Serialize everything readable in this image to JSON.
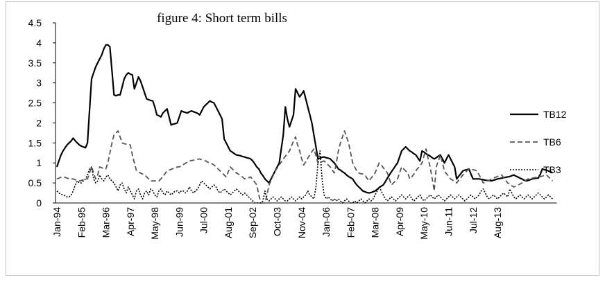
{
  "chart_data": {
    "type": "line",
    "title": "figure 4: Short term bills",
    "categories": [
      "Jan-94",
      null,
      null,
      null,
      null,
      null,
      null,
      null,
      null,
      null,
      null,
      null,
      "Feb-95",
      null,
      null,
      null,
      null,
      null,
      null,
      null,
      null,
      null,
      null,
      null,
      "Mar-96",
      null,
      null,
      null,
      null,
      null,
      null,
      null,
      null,
      null,
      null,
      null,
      "Apr-97",
      null,
      null,
      null,
      null,
      null,
      null,
      null,
      null,
      null,
      null,
      null,
      "May-98",
      null,
      null,
      null,
      null,
      null,
      null,
      null,
      null,
      null,
      null,
      null,
      "Jun-99",
      null,
      null,
      null,
      null,
      null,
      null,
      null,
      null,
      null,
      null,
      null,
      "Jul-00",
      null,
      null,
      null,
      null,
      null,
      null,
      null,
      null,
      null,
      null,
      null,
      "Aug-01",
      null,
      null,
      null,
      null,
      null,
      null,
      null,
      null,
      null,
      null,
      null,
      "Sep-02",
      null,
      null,
      null,
      null,
      null,
      null,
      null,
      null,
      null,
      null,
      null,
      "Oct-03",
      null,
      null,
      null,
      null,
      null,
      null,
      null,
      null,
      null,
      null,
      null,
      "Nov-04",
      null,
      null,
      null,
      null,
      null,
      null,
      null,
      null,
      null,
      null,
      null,
      "Jan-06",
      null,
      null,
      null,
      null,
      null,
      null,
      null,
      null,
      null,
      null,
      null,
      "Feb-07",
      null,
      null,
      null,
      null,
      null,
      null,
      null,
      null,
      null,
      null,
      null,
      "Mar-08",
      null,
      null,
      null,
      null,
      null,
      null,
      null,
      null,
      null,
      null,
      null,
      "Apr-09",
      null,
      null,
      null,
      null,
      null,
      null,
      null,
      null,
      null,
      null,
      null,
      "May-10",
      null,
      null,
      null,
      null,
      null,
      null,
      null,
      null,
      null,
      null,
      null,
      "Jun-11",
      null,
      null,
      null,
      null,
      null,
      null,
      null,
      null,
      null,
      null,
      null,
      "Jul-12",
      null,
      null,
      null,
      null,
      null,
      null,
      null,
      null,
      null,
      null,
      null,
      "Aug-13",
      null,
      null,
      null,
      null,
      null,
      null,
      null,
      null,
      null,
      null,
      null,
      null,
      null,
      null,
      null,
      null,
      null,
      null,
      null,
      null,
      null,
      null,
      null,
      null,
      null,
      null,
      null
    ],
    "series": [
      {
        "name": "TB12",
        "color": "#000000",
        "dash": "solid",
        "values": [
          0.9,
          1.05,
          1.2,
          1.3,
          1.38,
          1.45,
          1.5,
          1.55,
          1.62,
          1.55,
          1.5,
          1.45,
          1.42,
          1.4,
          1.38,
          1.5,
          2.3,
          3.1,
          3.25,
          3.4,
          3.5,
          3.6,
          3.7,
          3.85,
          3.95,
          3.95,
          3.9,
          3.3,
          2.7,
          2.68,
          2.7,
          2.7,
          2.9,
          3.1,
          3.2,
          3.25,
          3.22,
          3.2,
          2.85,
          3.0,
          3.15,
          3.05,
          2.9,
          2.75,
          2.6,
          2.58,
          2.56,
          2.55,
          2.4,
          2.2,
          2.18,
          2.15,
          2.25,
          2.3,
          2.35,
          2.15,
          1.95,
          1.97,
          1.98,
          2.0,
          2.15,
          2.3,
          2.28,
          2.26,
          2.25,
          2.28,
          2.3,
          2.28,
          2.26,
          2.24,
          2.2,
          2.3,
          2.4,
          2.45,
          2.5,
          2.55,
          2.52,
          2.5,
          2.4,
          2.3,
          2.2,
          2.1,
          1.6,
          1.5,
          1.4,
          1.3,
          1.27,
          1.23,
          1.2,
          1.19,
          1.18,
          1.16,
          1.15,
          1.13,
          1.12,
          1.1,
          1.05,
          0.98,
          0.9,
          0.85,
          0.75,
          0.68,
          0.6,
          0.55,
          0.5,
          0.6,
          0.7,
          0.8,
          0.9,
          1.0,
          1.35,
          1.7,
          2.4,
          2.1,
          1.9,
          2.05,
          2.2,
          2.85,
          2.75,
          2.65,
          2.72,
          2.8,
          2.6,
          2.4,
          2.2,
          2.0,
          1.7,
          1.4,
          1.1,
          1.12,
          1.14,
          1.15,
          1.13,
          1.12,
          1.1,
          1.05,
          1.0,
          0.93,
          0.85,
          0.82,
          0.78,
          0.75,
          0.7,
          0.66,
          0.63,
          0.6,
          0.52,
          0.45,
          0.4,
          0.35,
          0.3,
          0.28,
          0.26,
          0.25,
          0.26,
          0.28,
          0.3,
          0.34,
          0.38,
          0.42,
          0.45,
          0.53,
          0.62,
          0.7,
          0.78,
          0.85,
          0.93,
          1.0,
          1.15,
          1.3,
          1.35,
          1.4,
          1.35,
          1.3,
          1.27,
          1.23,
          1.2,
          1.12,
          1.05,
          1.3,
          1.27,
          1.23,
          1.2,
          1.17,
          1.13,
          1.1,
          1.13,
          1.17,
          1.2,
          1.1,
          1.0,
          1.1,
          1.2,
          1.1,
          1.0,
          0.9,
          0.6,
          0.67,
          0.73,
          0.8,
          0.82,
          0.83,
          0.85,
          0.72,
          0.6,
          0.6,
          0.6,
          0.6,
          0.59,
          0.58,
          0.57,
          0.56,
          0.56,
          0.55,
          0.57,
          0.58,
          0.6,
          0.61,
          0.62,
          0.63,
          0.64,
          0.65,
          0.66,
          0.68,
          0.7,
          0.67,
          0.65,
          0.62,
          0.6,
          0.57,
          0.55,
          0.56,
          0.58,
          0.6,
          0.61,
          0.62,
          0.62,
          0.72,
          0.85,
          0.83,
          0.82,
          0.8,
          0.78,
          0.75
        ]
      },
      {
        "name": "TB6",
        "color": "#555555",
        "dash": "dashed",
        "values": [
          0.6,
          0.62,
          0.64,
          0.65,
          0.64,
          0.62,
          0.61,
          0.6,
          0.6,
          0.58,
          0.56,
          0.55,
          0.56,
          0.58,
          0.6,
          0.6,
          0.75,
          0.9,
          0.75,
          0.6,
          0.7,
          0.9,
          0.88,
          0.86,
          0.85,
          1.0,
          1.25,
          1.5,
          1.7,
          1.75,
          1.8,
          1.65,
          1.5,
          1.48,
          1.47,
          1.46,
          1.45,
          1.2,
          1.0,
          0.8,
          0.77,
          0.75,
          0.72,
          0.7,
          0.65,
          0.6,
          0.55,
          0.55,
          0.55,
          0.55,
          0.55,
          0.6,
          0.67,
          0.73,
          0.8,
          0.82,
          0.84,
          0.86,
          0.88,
          0.9,
          0.9,
          0.93,
          0.96,
          0.99,
          1.02,
          1.05,
          1.06,
          1.07,
          1.08,
          1.09,
          1.1,
          1.08,
          1.06,
          1.05,
          1.02,
          1.0,
          0.98,
          0.95,
          0.9,
          0.85,
          0.8,
          0.75,
          0.7,
          0.65,
          0.78,
          0.9,
          0.85,
          0.8,
          0.75,
          0.72,
          0.68,
          0.65,
          0.6,
          0.62,
          0.63,
          0.65,
          0.58,
          0.52,
          0.45,
          0.2,
          0.0,
          0.0,
          0.0,
          0.2,
          0.45,
          0.57,
          0.68,
          0.8,
          0.87,
          0.95,
          1.02,
          1.1,
          1.17,
          1.23,
          1.3,
          1.42,
          1.55,
          1.65,
          1.45,
          1.3,
          1.1,
          0.95,
          1.03,
          1.12,
          1.2,
          1.28,
          1.35,
          1.18,
          1.0,
          1.02,
          1.03,
          1.05,
          1.0,
          0.95,
          0.9,
          0.82,
          0.75,
          1.0,
          1.3,
          1.5,
          1.65,
          1.8,
          1.65,
          1.5,
          1.25,
          1.0,
          0.9,
          0.8,
          0.75,
          0.73,
          0.72,
          0.7,
          0.62,
          0.55,
          0.62,
          0.68,
          0.75,
          0.88,
          1.0,
          0.95,
          0.88,
          0.82,
          0.75,
          0.6,
          0.45,
          0.5,
          0.55,
          0.6,
          0.75,
          0.9,
          0.85,
          0.8,
          0.75,
          0.6,
          0.65,
          0.72,
          0.8,
          0.87,
          0.93,
          1.0,
          1.18,
          1.35,
          1.1,
          0.9,
          0.6,
          0.3,
          0.9,
          1.05,
          1.2,
          1.0,
          0.8,
          0.73,
          0.67,
          0.6,
          0.57,
          0.53,
          0.5,
          0.57,
          0.63,
          0.7,
          0.75,
          0.8,
          0.85,
          0.84,
          0.83,
          0.82,
          0.8,
          0.7,
          0.6,
          0.5,
          0.52,
          0.55,
          0.57,
          0.6,
          0.62,
          0.64,
          0.66,
          0.68,
          0.7,
          0.63,
          0.57,
          0.5,
          0.47,
          0.43,
          0.4,
          0.42,
          0.45,
          0.47,
          0.5,
          0.53,
          0.57,
          0.6,
          0.61,
          0.62,
          0.63,
          0.64,
          0.65,
          0.66,
          0.67,
          0.69,
          0.7,
          0.65,
          0.6,
          0.55
        ]
      },
      {
        "name": "TB3",
        "color": "#000000",
        "dash": "dotted",
        "values": [
          0.3,
          0.25,
          0.22,
          0.2,
          0.18,
          0.15,
          0.15,
          0.2,
          0.3,
          0.45,
          0.55,
          0.5,
          0.5,
          0.55,
          0.6,
          0.7,
          0.85,
          0.9,
          0.6,
          0.5,
          0.55,
          0.7,
          0.6,
          0.55,
          0.65,
          0.7,
          0.6,
          0.55,
          0.5,
          0.4,
          0.3,
          0.45,
          0.5,
          0.35,
          0.25,
          0.4,
          0.3,
          0.2,
          0.1,
          0.3,
          0.35,
          0.2,
          0.1,
          0.25,
          0.3,
          0.2,
          0.35,
          0.3,
          0.2,
          0.15,
          0.3,
          0.35,
          0.25,
          0.2,
          0.3,
          0.25,
          0.2,
          0.25,
          0.3,
          0.3,
          0.25,
          0.3,
          0.3,
          0.25,
          0.3,
          0.4,
          0.3,
          0.25,
          0.3,
          0.35,
          0.45,
          0.55,
          0.5,
          0.45,
          0.4,
          0.35,
          0.4,
          0.45,
          0.4,
          0.3,
          0.25,
          0.3,
          0.35,
          0.3,
          0.25,
          0.2,
          0.25,
          0.3,
          0.35,
          0.3,
          0.25,
          0.2,
          0.25,
          0.2,
          0.15,
          0.1,
          0.05,
          0.0,
          0.0,
          0.0,
          0.0,
          0.05,
          0.3,
          0.1,
          0.05,
          0.1,
          0.15,
          0.1,
          0.05,
          0.1,
          0.15,
          0.1,
          0.05,
          0.05,
          0.1,
          0.15,
          0.1,
          0.05,
          0.1,
          0.15,
          0.1,
          0.15,
          0.2,
          0.3,
          0.2,
          0.15,
          0.1,
          0.4,
          1.0,
          1.3,
          0.6,
          0.2,
          0.1,
          0.15,
          0.1,
          0.05,
          0.1,
          0.05,
          0.1,
          0.05,
          0.0,
          0.05,
          0.1,
          0.05,
          0.0,
          0.0,
          0.05,
          0.0,
          0.05,
          0.1,
          0.05,
          0.0,
          0.05,
          0.1,
          0.05,
          0.1,
          0.2,
          0.3,
          0.4,
          0.3,
          0.2,
          0.1,
          0.05,
          0.1,
          0.15,
          0.1,
          0.05,
          0.1,
          0.15,
          0.2,
          0.15,
          0.1,
          0.15,
          0.2,
          0.1,
          0.05,
          0.1,
          0.15,
          0.2,
          0.1,
          0.05,
          0.1,
          0.15,
          0.2,
          0.15,
          0.1,
          0.15,
          0.2,
          0.15,
          0.1,
          0.05,
          0.1,
          0.15,
          0.2,
          0.15,
          0.1,
          0.15,
          0.2,
          0.15,
          0.1,
          0.05,
          0.1,
          0.15,
          0.2,
          0.15,
          0.1,
          0.15,
          0.2,
          0.3,
          0.35,
          0.25,
          0.15,
          0.1,
          0.15,
          0.2,
          0.15,
          0.1,
          0.15,
          0.2,
          0.25,
          0.2,
          0.15,
          0.35,
          0.25,
          0.15,
          0.1,
          0.15,
          0.2,
          0.15,
          0.1,
          0.15,
          0.2,
          0.15,
          0.1,
          0.15,
          0.2,
          0.25,
          0.2,
          0.15,
          0.1,
          0.15,
          0.2,
          0.15,
          0.1
        ]
      }
    ],
    "ylim": [
      0,
      4.5
    ],
    "yticks": [
      0,
      0.5,
      1,
      1.5,
      2,
      2.5,
      3,
      3.5,
      4,
      4.5
    ],
    "grid": false,
    "legend": "right"
  }
}
